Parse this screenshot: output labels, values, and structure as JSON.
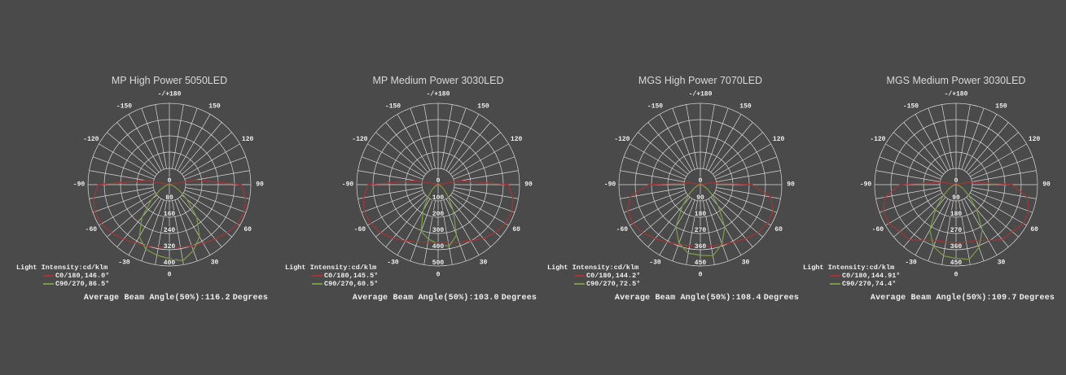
{
  "colors": {
    "background": "#4a4a4a",
    "grid": "#d8d8d8",
    "text": "#efefef",
    "title": "#d9d9d9",
    "c0": "#a03636",
    "c90": "#7b9a44"
  },
  "polar": {
    "legend_title": "Light Intensity:cd/klm",
    "angle_ticks": [
      {
        "angle": 180,
        "label": "-/+180"
      },
      {
        "angle": 150,
        "label": "150"
      },
      {
        "angle": 120,
        "label": "120"
      },
      {
        "angle": 90,
        "label": "90"
      },
      {
        "angle": 60,
        "label": "60"
      },
      {
        "angle": 30,
        "label": "30"
      },
      {
        "angle": 0,
        "label": "0"
      },
      {
        "angle": -30,
        "label": "-30"
      },
      {
        "angle": -60,
        "label": "-60"
      },
      {
        "angle": -90,
        "label": "-90"
      },
      {
        "angle": -120,
        "label": "-120"
      },
      {
        "angle": -150,
        "label": "-150"
      }
    ],
    "curve_angles": [
      -110,
      -100,
      -90,
      -80,
      -70,
      -60,
      -50,
      -40,
      -30,
      -20,
      -10,
      0,
      10,
      20,
      30,
      40,
      50,
      60,
      70,
      80,
      90,
      100,
      110
    ]
  },
  "chart_data": [
    {
      "type": "line",
      "projection": "polar",
      "title": "MP High Power 5050LED",
      "rings": [
        80,
        160,
        240,
        320,
        400
      ],
      "rmax": 400,
      "center_label": "0",
      "legend": [
        {
          "label": "C0/180,146.0°",
          "color": "c0"
        },
        {
          "label": "C90/270,86.5°",
          "color": "c90"
        }
      ],
      "avg_prefix": "Average Beam Angle(50%):",
      "avg_value": "116.2",
      "avg_unit": "Degrees",
      "series": [
        {
          "name": "C0/180",
          "color": "c0",
          "values": [
            5,
            120,
            350,
            378,
            390,
            386,
            370,
            350,
            332,
            320,
            313,
            310,
            313,
            320,
            332,
            350,
            370,
            386,
            391,
            380,
            354,
            130,
            5
          ]
        },
        {
          "name": "C90/270",
          "color": "c90",
          "values": [
            0,
            0,
            4,
            10,
            25,
            55,
            115,
            210,
            295,
            338,
            352,
            364,
            380,
            345,
            295,
            210,
            112,
            55,
            25,
            10,
            4,
            0,
            0
          ]
        }
      ]
    },
    {
      "type": "line",
      "projection": "polar",
      "title": "MP Medium Power 3030LED",
      "rings": [
        100,
        200,
        300,
        400,
        500
      ],
      "rmax": 500,
      "center_label": "0",
      "legend": [
        {
          "label": "C0/180,145.5°",
          "color": "c0"
        },
        {
          "label": "C90/270,60.5°",
          "color": "c90"
        }
      ],
      "avg_prefix": "Average Beam Angle(50%):",
      "avg_value": "103.0",
      "avg_unit": "Degrees",
      "series": [
        {
          "name": "C0/180",
          "color": "c0",
          "values": [
            5,
            140,
            430,
            465,
            483,
            478,
            460,
            430,
            400,
            375,
            360,
            355,
            360,
            375,
            400,
            430,
            460,
            478,
            483,
            465,
            430,
            140,
            5
          ]
        },
        {
          "name": "C90/270",
          "color": "c90",
          "values": [
            0,
            0,
            3,
            5,
            11,
            22,
            48,
            95,
            185,
            305,
            340,
            365,
            385,
            330,
            185,
            95,
            48,
            22,
            11,
            5,
            3,
            0,
            0
          ]
        }
      ]
    },
    {
      "type": "line",
      "projection": "polar",
      "title": "MGS High Power 7070LED",
      "rings": [
        90,
        180,
        270,
        360,
        450
      ],
      "rmax": 450,
      "center_label": "0",
      "legend": [
        {
          "label": "C0/180,144.2°",
          "color": "c0"
        },
        {
          "label": "C90/270,72.5°",
          "color": "c90"
        }
      ],
      "avg_prefix": "Average Beam Angle(50%):",
      "avg_value": "108.4",
      "avg_unit": "Degrees",
      "series": [
        {
          "name": "C0/180",
          "color": "c0",
          "values": [
            0,
            60,
            285,
            395,
            428,
            430,
            415,
            390,
            368,
            352,
            344,
            342,
            344,
            352,
            368,
            390,
            415,
            428,
            430,
            395,
            285,
            60,
            0
          ]
        },
        {
          "name": "C90/270",
          "color": "c90",
          "values": [
            0,
            0,
            3,
            8,
            18,
            40,
            80,
            155,
            270,
            345,
            385,
            390,
            400,
            350,
            270,
            155,
            80,
            40,
            18,
            8,
            3,
            0,
            0
          ]
        }
      ]
    },
    {
      "type": "line",
      "projection": "polar",
      "title": "MGS Medium Power 3030LED",
      "rings": [
        90,
        180,
        270,
        360,
        450
      ],
      "rmax": 450,
      "center_label": "0",
      "legend": [
        {
          "label": "C0/180,144.91°",
          "color": "c0"
        },
        {
          "label": "C90/270,74.4°",
          "color": "c90"
        }
      ],
      "avg_prefix": "Average Beam Angle(50%):",
      "avg_value": "109.7",
      "avg_unit": "Degrees",
      "series": [
        {
          "name": "C0/180",
          "color": "c0",
          "values": [
            0,
            80,
            310,
            400,
            428,
            430,
            405,
            398,
            355,
            330,
            322,
            320,
            322,
            330,
            355,
            398,
            405,
            430,
            428,
            400,
            310,
            80,
            0
          ]
        },
        {
          "name": "C90/270",
          "color": "c90",
          "values": [
            0,
            0,
            3,
            8,
            20,
            45,
            90,
            175,
            290,
            365,
            400,
            408,
            420,
            370,
            290,
            175,
            90,
            45,
            20,
            8,
            3,
            0,
            0
          ]
        }
      ]
    }
  ]
}
